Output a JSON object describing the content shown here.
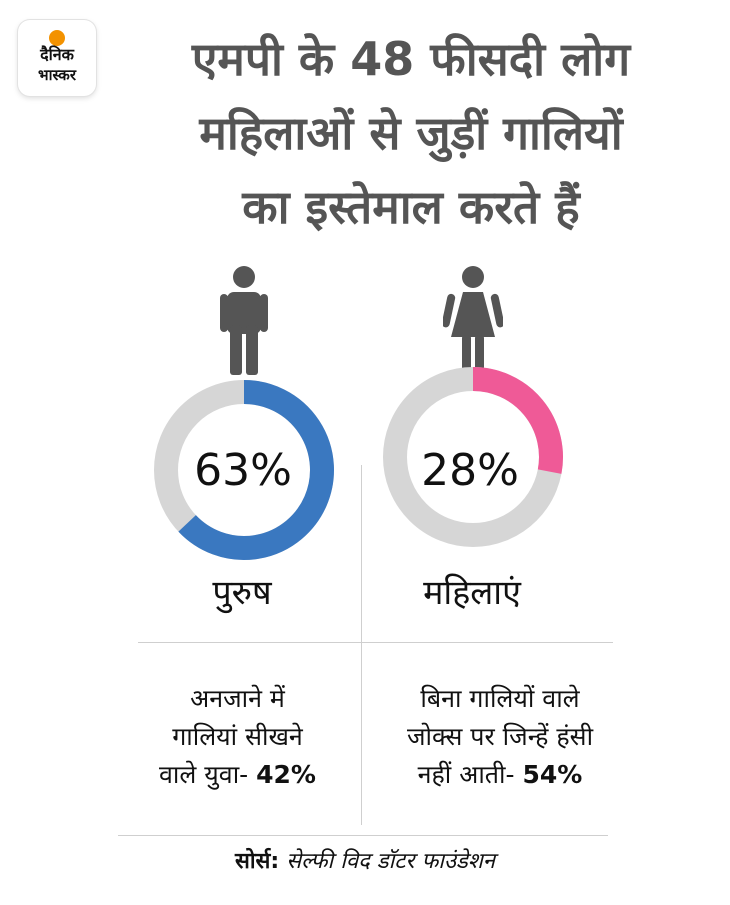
{
  "logo": {
    "line1": "दैनिक",
    "line2": "भास्कर",
    "dot_color": "#f39200"
  },
  "title": {
    "line1": "एमपी के 48 फीसदी लोग",
    "line2": "महिलाओं से जुड़ीं गालियों",
    "line3": "का इस्तेमाल करते हैं"
  },
  "icons": {
    "left": "man-icon",
    "right": "woman-icon",
    "color": "#555555"
  },
  "chart_data": {
    "type": "pie",
    "title": "एमपी के 48 फीसदी लोग महिलाओं से जुड़ीं गालियों का इस्तेमाल करते हैं",
    "series": [
      {
        "name": "पुरुष",
        "value": 63,
        "label": "63%",
        "color": "#3a78c0"
      },
      {
        "name": "महिलाएं",
        "value": 28,
        "label": "28%",
        "color": "#ef5a97"
      }
    ],
    "track_color": "#d6d6d6",
    "unit": "%"
  },
  "stats": {
    "left": {
      "line1": "अनजाने में",
      "line2": "गालियां सीखने",
      "line3": "वाले युवा- ",
      "value": "42%"
    },
    "right": {
      "line1": "बिना गालियों वाले",
      "line2": "जोक्स पर जिन्हें हंसी",
      "line3": "नहीं आती- ",
      "value": "54%"
    }
  },
  "source": {
    "label": "सोर्स:",
    "text": " सेल्फी विद डॉटर फाउंडेशन"
  }
}
